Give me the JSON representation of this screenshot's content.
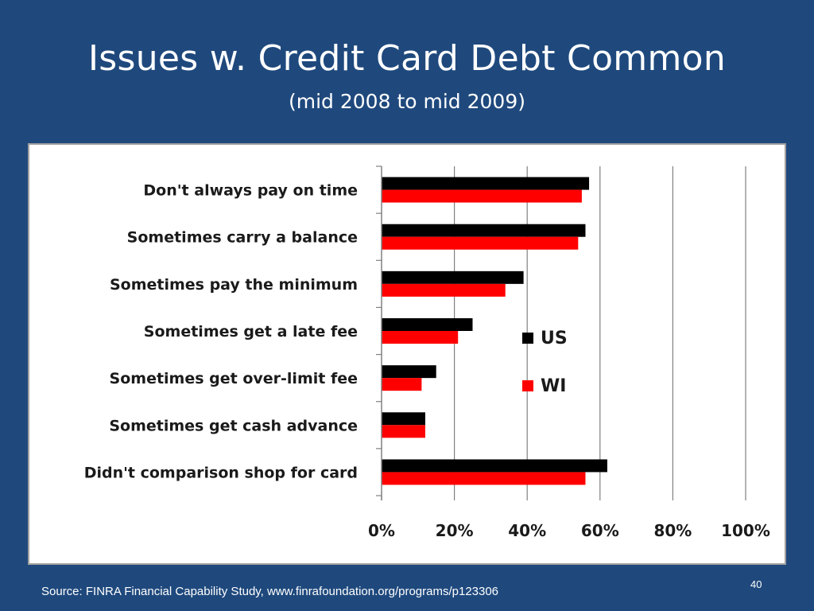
{
  "slide": {
    "title": "Issues w. Credit Card Debt Common",
    "subtitle": "(mid 2008 to mid 2009)",
    "source": "Source: FINRA Financial Capability Study, www.finrafoundation.org/programs/p123306",
    "page_number": "40"
  },
  "chart_data": {
    "type": "bar",
    "orientation": "horizontal",
    "categories": [
      "Don't always pay on time",
      "Sometimes carry a balance",
      "Sometimes pay the minimum",
      "Sometimes get a late fee",
      "Sometimes get over-limit fee",
      "Sometimes get cash advance",
      "Didn't comparison shop for card"
    ],
    "series": [
      {
        "name": "US",
        "color": "#000000",
        "values": [
          57,
          56,
          39,
          25,
          15,
          12,
          62
        ]
      },
      {
        "name": "WI",
        "color": "#FF0000",
        "values": [
          55,
          54,
          34,
          21,
          11,
          12,
          56
        ]
      }
    ],
    "xlim": [
      0,
      100
    ],
    "x_ticks": [
      "0%",
      "20%",
      "40%",
      "60%",
      "80%",
      "100%"
    ],
    "x_tick_values": [
      0,
      20,
      40,
      60,
      80,
      100
    ],
    "grid": true,
    "legend_position": "right"
  }
}
